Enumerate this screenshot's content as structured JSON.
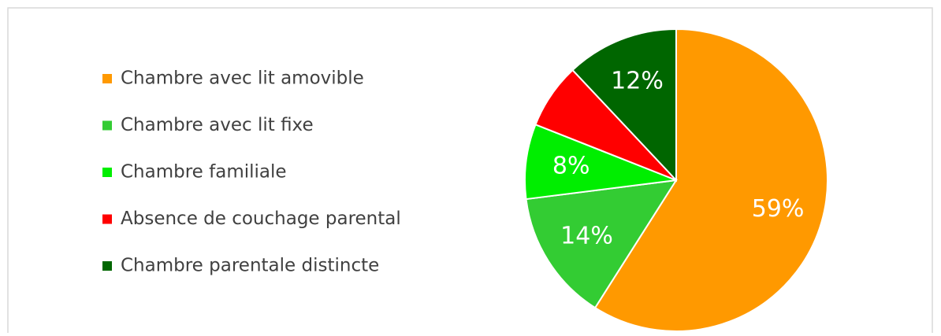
{
  "chart_data": {
    "type": "pie",
    "categories": [
      "Chambre avec lit amovible",
      "Chambre avec lit fixe",
      "Chambre familiale",
      "Absence de couchage parental",
      "Chambre parentale distincte"
    ],
    "values": [
      59,
      14,
      8,
      7,
      12
    ],
    "value_labels": [
      "59%",
      "14%",
      "8%",
      null,
      "12%"
    ],
    "colors": [
      "#ff9900",
      "#33cc33",
      "#00ee00",
      "#ff0000",
      "#006600"
    ],
    "legend": "left"
  }
}
